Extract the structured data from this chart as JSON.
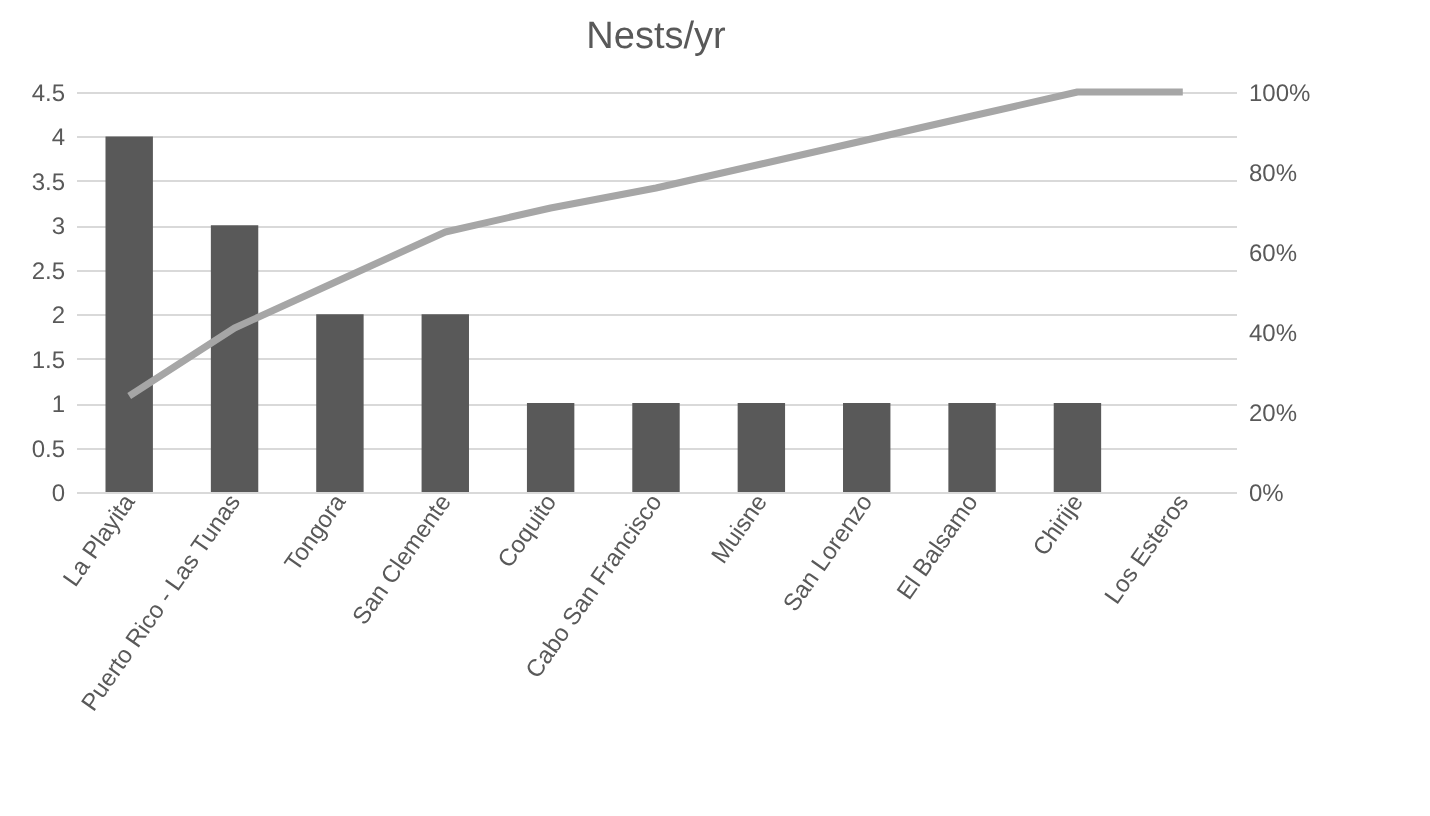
{
  "chart_data": {
    "type": "bar",
    "title": "Nests/yr",
    "categories": [
      "La Playita",
      "Puerto Rico - Las Tunas",
      "Tongora",
      "San Clemente",
      "Coquito",
      "Cabo San Francisco",
      "Muisne",
      "San Lorenzo",
      "El Balsamo",
      "Chirije",
      "Los Esteros"
    ],
    "series": [
      {
        "color": "#595959",
        "values": [
          4,
          3,
          2,
          2,
          1,
          1,
          1,
          1,
          1,
          1,
          0
        ]
      },
      {
        "type": "line",
        "axis": "y2",
        "color": "#a6a6a6",
        "values": [
          24,
          41,
          53,
          65,
          71,
          76,
          82,
          88,
          94,
          100,
          100
        ]
      }
    ],
    "ylim": [
      0,
      4.5
    ],
    "yticks": [
      0,
      0.5,
      1,
      1.5,
      2,
      2.5,
      3,
      3.5,
      4,
      4.5
    ],
    "y2lim": [
      0,
      100
    ],
    "y2ticks": [
      {
        "value": 0,
        "label": "0%"
      },
      {
        "value": 20,
        "label": "20%"
      },
      {
        "value": 40,
        "label": "40%"
      },
      {
        "value": 60,
        "label": "60%"
      },
      {
        "value": 80,
        "label": "80%"
      },
      {
        "value": 100,
        "label": "100%"
      }
    ],
    "grid": "y"
  }
}
